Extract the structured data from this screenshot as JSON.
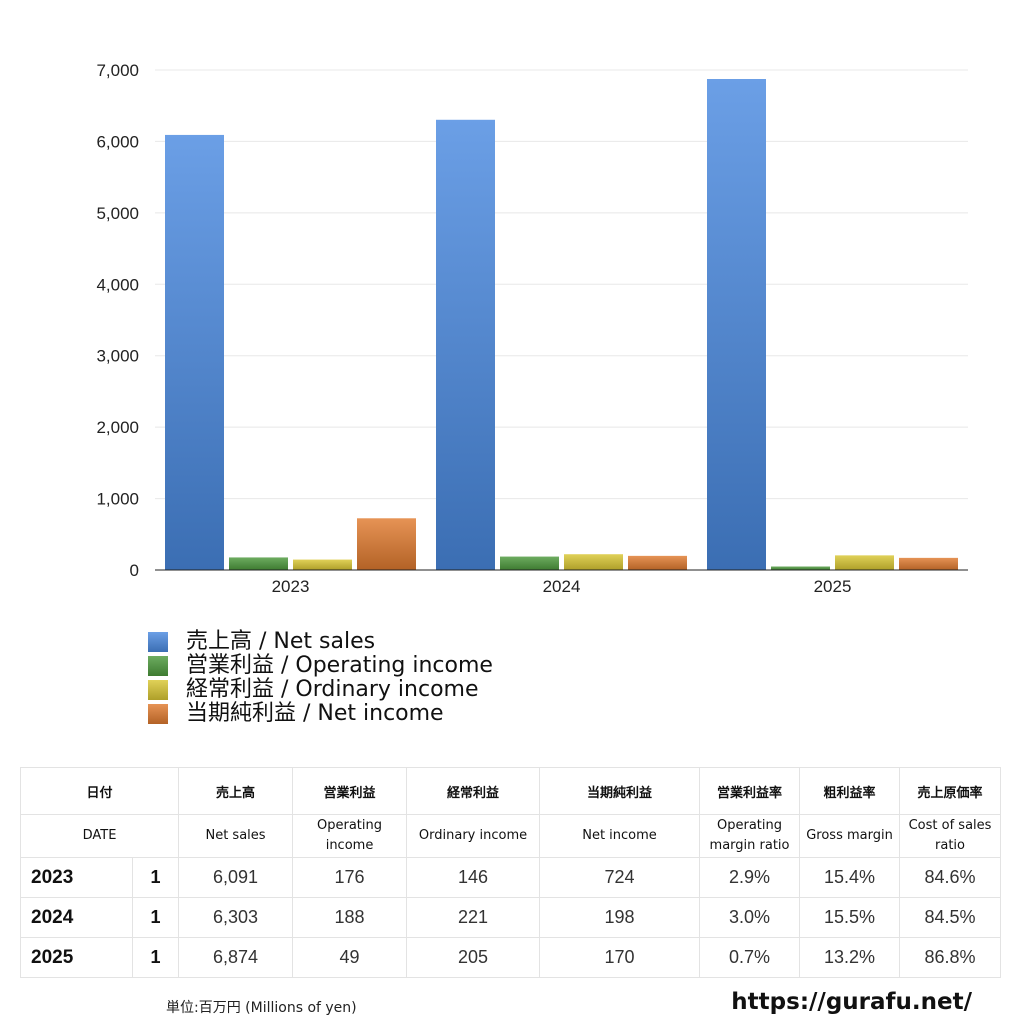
{
  "chart_data": {
    "type": "bar",
    "categories": [
      "2023",
      "2024",
      "2025"
    ],
    "series": [
      {
        "name": "売上高 / Net sales",
        "values": [
          6091,
          6303,
          6874
        ],
        "color": "#4a8ae0"
      },
      {
        "name": "営業利益 / Operating income",
        "values": [
          176,
          188,
          49
        ],
        "color": "#4d9a3d"
      },
      {
        "name": "経常利益 / Ordinary income",
        "values": [
          146,
          221,
          205
        ],
        "color": "#d9c733"
      },
      {
        "name": "当期純利益 / Net income",
        "values": [
          724,
          198,
          170
        ],
        "color": "#e07b30"
      }
    ],
    "ylim": [
      0,
      7000
    ],
    "yticks": [
      "0",
      "1,000",
      "2,000",
      "3,000",
      "4,000",
      "5,000",
      "6,000",
      "7,000"
    ],
    "grid": true,
    "legend_position": "bottom-left"
  },
  "table": {
    "header_jp": [
      "日付",
      "売上高",
      "営業利益",
      "経常利益",
      "当期純利益",
      "営業利益率",
      "粗利益率",
      "売上原価率"
    ],
    "header_en": [
      "DATE",
      "Net sales",
      "Operating income",
      "Ordinary income",
      "Net income",
      "Operating margin ratio",
      "Gross margin",
      "Cost of sales ratio"
    ],
    "rows": [
      {
        "year": "2023",
        "month": "1",
        "net_sales": "6,091",
        "operating_income": "176",
        "ordinary_income": "146",
        "net_income": "724",
        "op_margin": "2.9%",
        "gross_margin": "15.4%",
        "cost_ratio": "84.6%"
      },
      {
        "year": "2024",
        "month": "1",
        "net_sales": "6,303",
        "operating_income": "188",
        "ordinary_income": "221",
        "net_income": "198",
        "op_margin": "3.0%",
        "gross_margin": "15.5%",
        "cost_ratio": "84.5%"
      },
      {
        "year": "2025",
        "month": "1",
        "net_sales": "6,874",
        "operating_income": "49",
        "ordinary_income": "205",
        "net_income": "170",
        "op_margin": "0.7%",
        "gross_margin": "13.2%",
        "cost_ratio": "86.8%"
      }
    ]
  },
  "footer": {
    "unit": "単位:百万円 (Millions of yen)",
    "site": "https://gurafu.net/"
  }
}
